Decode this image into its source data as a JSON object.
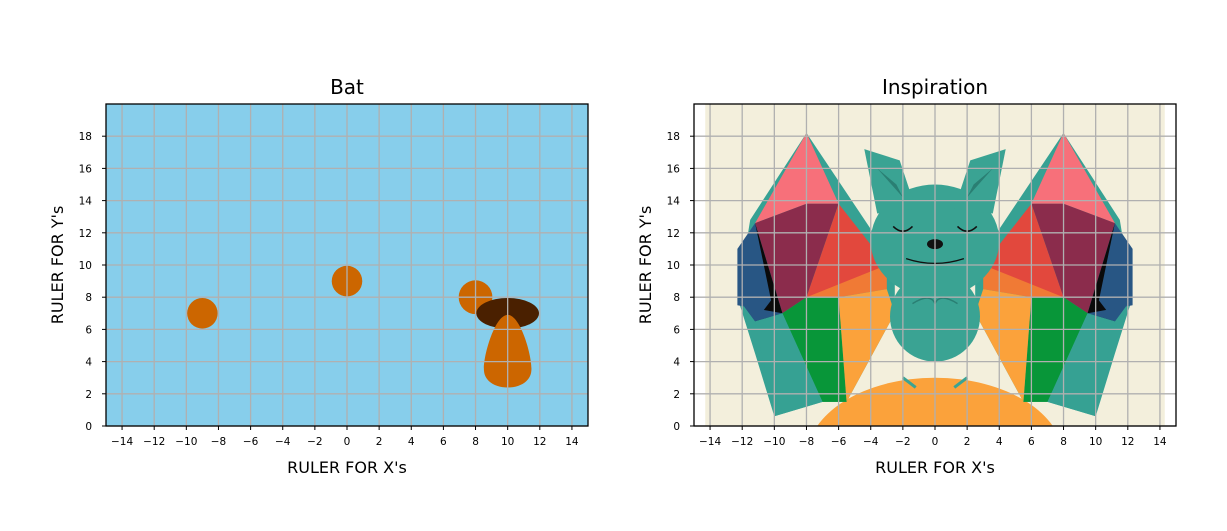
{
  "chart_data": [
    {
      "type": "scatter",
      "title": "Bat",
      "xlabel": "RULER FOR X's",
      "ylabel": "RULER FOR Y's",
      "xlim": [
        -15,
        15
      ],
      "ylim": [
        0,
        20
      ],
      "xticks": [
        "−14",
        "−12",
        "−10",
        "−8",
        "−6",
        "−4",
        "−2",
        "0",
        "2",
        "4",
        "6",
        "8",
        "10",
        "12",
        "14"
      ],
      "xtick_values": [
        -14,
        -12,
        -10,
        -8,
        -6,
        -4,
        -2,
        0,
        2,
        4,
        6,
        8,
        10,
        12,
        14
      ],
      "yticks": [
        "0",
        "2",
        "4",
        "6",
        "8",
        "10",
        "12",
        "14",
        "16",
        "18"
      ],
      "ytick_values": [
        0,
        2,
        4,
        6,
        8,
        10,
        12,
        14,
        16,
        18
      ],
      "grid": true,
      "background": "#87ceeb",
      "grid_color": "#b0b0b0",
      "shapes": [
        {
          "kind": "ellipse",
          "cx": -9,
          "cy": 7,
          "rx": 0.95,
          "ry": 0.95,
          "color": "#cc6600"
        },
        {
          "kind": "ellipse",
          "cx": 0,
          "cy": 9,
          "rx": 0.95,
          "ry": 0.95,
          "color": "#cc6600"
        },
        {
          "kind": "ellipse",
          "cx": 8,
          "cy": 8,
          "rx": 1.05,
          "ry": 1.05,
          "color": "#cc6600"
        },
        {
          "kind": "ellipse",
          "cx": 10,
          "cy": 7,
          "rx": 1.95,
          "ry": 0.95,
          "color": "#4a2000"
        },
        {
          "kind": "egg",
          "cx": 10,
          "bottom": 2.1,
          "top": 6.9,
          "width": 2.95,
          "color": "#cc6600"
        }
      ]
    },
    {
      "type": "image",
      "title": "Inspiration",
      "xlabel": "RULER FOR X's",
      "ylabel": "RULER FOR Y's",
      "xlim": [
        -15,
        15
      ],
      "ylim": [
        0,
        20
      ],
      "xticks": [
        "−14",
        "−12",
        "−10",
        "−8",
        "−6",
        "−4",
        "−2",
        "0",
        "2",
        "4",
        "6",
        "8",
        "10",
        "12",
        "14"
      ],
      "xtick_values": [
        -14,
        -12,
        -10,
        -8,
        -6,
        -4,
        -2,
        0,
        2,
        4,
        6,
        8,
        10,
        12,
        14
      ],
      "yticks": [
        "0",
        "2",
        "4",
        "6",
        "8",
        "10",
        "12",
        "14",
        "16",
        "18"
      ],
      "ytick_values": [
        0,
        2,
        4,
        6,
        8,
        10,
        12,
        14,
        16,
        18
      ],
      "grid": true,
      "background": "#f3efdc",
      "grid_color": "#b0b0b0",
      "palette": {
        "bat": "#3aa393",
        "wing_pink": "#f7707a",
        "wing_maroon": "#8b2c4c",
        "wing_red": "#e2483d",
        "wing_orange": "#f07a35",
        "wing_black": "#0a0a0a",
        "wing_navy": "#285684",
        "wing_green": "#089639",
        "wing_teal": "#36a193",
        "wing_light_orange": "#fba23b",
        "moon": "#fba23b"
      }
    }
  ]
}
